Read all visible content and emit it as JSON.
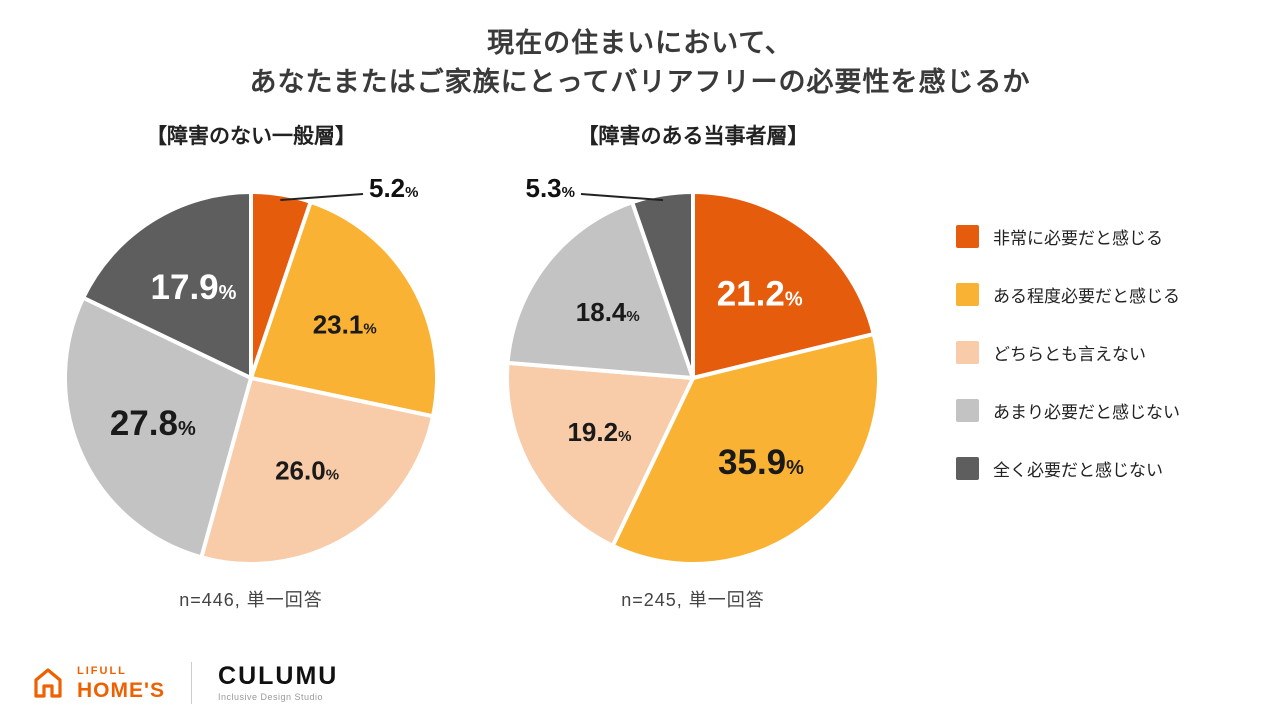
{
  "title": {
    "line1": "現在の住まいにおいて、",
    "line2": "あなたまたはご家族にとってバリアフリーの必要性を感じるか"
  },
  "colors": {
    "strongly_need": "#E55C0D",
    "somewhat_need": "#F9B233",
    "neutral": "#F8CBA9",
    "not_really_need": "#C3C3C3",
    "not_at_all_need": "#5E5E5E",
    "brand_orange": "#EE6100"
  },
  "legend": {
    "items": [
      {
        "label": "非常に必要だと感じる",
        "color": "#E55C0D"
      },
      {
        "label": "ある程度必要だと感じる",
        "color": "#F9B233"
      },
      {
        "label": "どちらとも言えない",
        "color": "#F8CBA9"
      },
      {
        "label": "あまり必要だと感じない",
        "color": "#C3C3C3"
      },
      {
        "label": "全く必要だと感じない",
        "color": "#5E5E5E"
      }
    ]
  },
  "chart_data": [
    {
      "type": "pie",
      "title": "【障害のない一般層】",
      "note": "n=446, 単一回答",
      "start_angle": 0,
      "direction": "clockwise",
      "slices": [
        {
          "label": "非常に必要だと感じる",
          "value": 5.2,
          "color": "#E55C0D",
          "callout": true
        },
        {
          "label": "ある程度必要だと感じる",
          "value": 23.1,
          "color": "#F9B233",
          "label_color": "#1a1a1a"
        },
        {
          "label": "どちらとも言えない",
          "value": 26.0,
          "color": "#F8CBA9",
          "label_color": "#1a1a1a"
        },
        {
          "label": "あまり必要だと感じない",
          "value": 27.8,
          "color": "#C3C3C3",
          "label_color": "#1a1a1a",
          "emphasis": true
        },
        {
          "label": "全く必要だと感じない",
          "value": 17.9,
          "color": "#5E5E5E",
          "label_color": "#ffffff",
          "emphasis": true
        }
      ]
    },
    {
      "type": "pie",
      "title": "【障害のある当事者層】",
      "note": "n=245, 単一回答",
      "start_angle": 0,
      "direction": "clockwise",
      "slices": [
        {
          "label": "非常に必要だと感じる",
          "value": 21.2,
          "color": "#E55C0D",
          "label_color": "#ffffff",
          "emphasis": true
        },
        {
          "label": "ある程度必要だと感じる",
          "value": 35.9,
          "color": "#F9B233",
          "label_color": "#1a1a1a",
          "emphasis": true
        },
        {
          "label": "どちらとも言えない",
          "value": 19.2,
          "color": "#F8CBA9",
          "label_color": "#1a1a1a"
        },
        {
          "label": "あまり必要だと感じない",
          "value": 18.4,
          "color": "#C3C3C3",
          "label_color": "#1a1a1a"
        },
        {
          "label": "全く必要だと感じない",
          "value": 5.3,
          "color": "#5E5E5E",
          "callout": true
        }
      ]
    }
  ],
  "footer": {
    "lifull_brand": "LIFULL",
    "lifull_product": "HOME'S",
    "culumu_name": "CULUMU",
    "culumu_tagline": "Inclusive Design Studio"
  }
}
